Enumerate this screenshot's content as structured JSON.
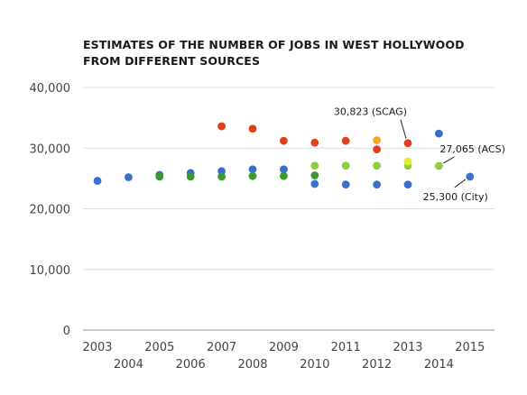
{
  "title": {
    "line1": "ESTIMATES OF THE NUMBER OF JOBS IN WEST HOLLYWOOD",
    "line2": "FROM DIFFERENT SOURCES"
  },
  "chart_data": {
    "type": "scatter",
    "title": "ESTIMATES OF THE NUMBER OF JOBS IN WEST HOLLYWOOD FROM DIFFERENT SOURCES",
    "xlabel": "",
    "ylabel": "",
    "xlim": [
      2003,
      2015
    ],
    "ylim": [
      0,
      40000
    ],
    "x_ticks": [
      2003,
      2004,
      2005,
      2006,
      2007,
      2008,
      2009,
      2010,
      2011,
      2012,
      2013,
      2014,
      2015
    ],
    "x_tick_labels": [
      "2003",
      "2004",
      "2005",
      "2006",
      "2007",
      "2008",
      "2009",
      "2010",
      "2011",
      "2012",
      "2013",
      "2014",
      "2015"
    ],
    "y_ticks": [
      0,
      10000,
      20000,
      30000,
      40000
    ],
    "y_tick_labels": [
      "0",
      "10,000",
      "20,000",
      "30,000",
      "40,000"
    ],
    "grid": "horizontal",
    "series": [
      {
        "color": "#3a6fcc",
        "points": [
          [
            2003,
            24600
          ],
          [
            2004,
            25200
          ],
          [
            2005,
            25600
          ],
          [
            2006,
            25900
          ],
          [
            2007,
            26200
          ],
          [
            2008,
            26500
          ],
          [
            2009,
            26500
          ],
          [
            2010,
            24100
          ],
          [
            2011,
            24000
          ],
          [
            2012,
            24000
          ],
          [
            2013,
            24000
          ],
          [
            2014,
            32400
          ],
          [
            2015,
            25300
          ]
        ]
      },
      {
        "color": "#3a9a2b",
        "points": [
          [
            2005,
            25300
          ],
          [
            2006,
            25300
          ],
          [
            2007,
            25300
          ],
          [
            2008,
            25400
          ],
          [
            2009,
            25400
          ],
          [
            2010,
            25500
          ]
        ]
      },
      {
        "color": "#e0401c",
        "points": [
          [
            2007,
            33600
          ],
          [
            2008,
            33200
          ],
          [
            2009,
            31200
          ],
          [
            2010,
            30900
          ],
          [
            2011,
            31200
          ],
          [
            2012,
            29800
          ],
          [
            2013,
            30823
          ]
        ]
      },
      {
        "color": "#f5a623",
        "points": [
          [
            2012,
            31300
          ]
        ]
      },
      {
        "color": "#8ccf3c",
        "points": [
          [
            2010,
            27100
          ],
          [
            2011,
            27100
          ],
          [
            2012,
            27100
          ],
          [
            2013,
            27100
          ],
          [
            2014,
            27065
          ]
        ]
      },
      {
        "color": "#e6ea3a",
        "points": [
          [
            2013,
            27800
          ]
        ]
      }
    ],
    "annotations": [
      {
        "text": "30,823 (SCAG)",
        "x": 2013,
        "y": 30823
      },
      {
        "text": "27,065 (ACS)",
        "x": 2014,
        "y": 27065
      },
      {
        "text": "25,300 (City)",
        "x": 2015,
        "y": 25300
      }
    ],
    "colors": {
      "grid": "#dddddd",
      "axis": "#999999",
      "text": "#444444"
    }
  }
}
